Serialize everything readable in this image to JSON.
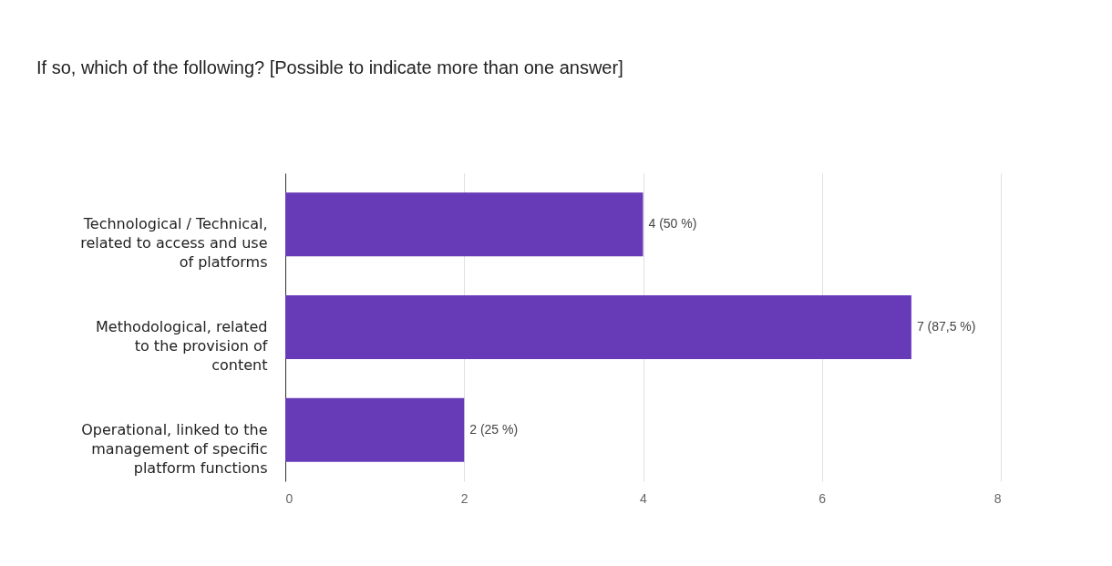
{
  "chart_data": {
    "type": "bar",
    "orientation": "horizontal",
    "title": "If so, which of the following? [Possible to indicate more than one answer]",
    "categories": [
      "Technological / Technical,\nrelated to access and use\nof platforms",
      "Methodological, related\nto the provision of\ncontent",
      "Operational, linked to the\nmanagement of specific\nplatform functions"
    ],
    "values": [
      4,
      7,
      2
    ],
    "value_labels": [
      "4 (50 %)",
      "7 (87,5 %)",
      "2 (25 %)"
    ],
    "color": "#673ab7",
    "xlim": [
      0,
      8
    ],
    "xticks": [
      0,
      2,
      4,
      6,
      8
    ],
    "grid": "x"
  }
}
